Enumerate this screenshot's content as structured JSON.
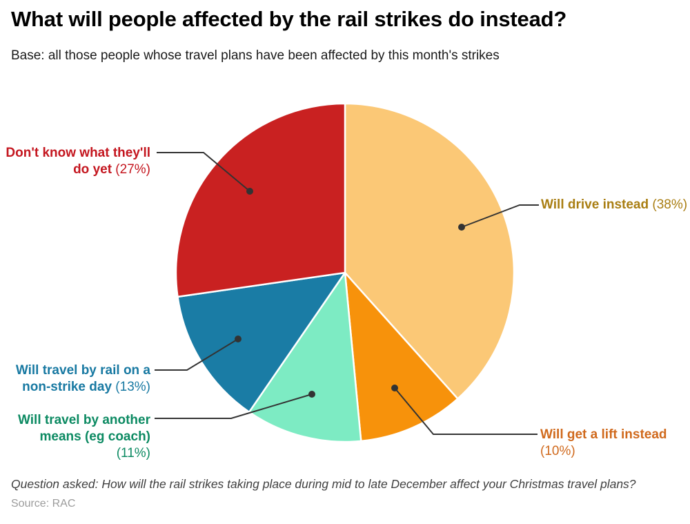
{
  "header": {
    "title": "What will people affected by the rail strikes do instead?",
    "subtitle": "Base: all those people whose travel plans have been affected by this month's strikes"
  },
  "footer": {
    "question": "Question asked: How will the rail strikes taking place during mid to late December affect your Christmas travel plans?",
    "source": "Source: RAC"
  },
  "chart_data": {
    "type": "pie",
    "title": "What will people affected by the rail strikes do instead?",
    "start_angle_deg": 0,
    "direction": "clockwise",
    "leader_line_color": "#333333",
    "slice_stroke_color": "#ffffff",
    "slices": [
      {
        "name": "Will drive instead",
        "value": 38,
        "pct_label": "(38%)",
        "color": "#FBC876",
        "label_color": "#A97E12",
        "label_lines": [
          [
            [
              "Will drive instead",
              true
            ],
            [
              " (38%)",
              false
            ]
          ]
        ]
      },
      {
        "name": "Will get a lift instead",
        "value": 10,
        "pct_label": "(10%)",
        "color": "#F7920B",
        "label_color": "#D0691C",
        "label_lines": [
          [
            [
              "Will get a lift instead",
              true
            ]
          ],
          [
            [
              "(10%)",
              false
            ]
          ]
        ]
      },
      {
        "name": "Will travel by another means (eg coach)",
        "value": 11,
        "pct_label": "(11%)",
        "color": "#7DEBC3",
        "label_color": "#0C8A62",
        "label_lines": [
          [
            [
              "Will travel by another",
              true
            ]
          ],
          [
            [
              "means (eg coach)",
              true
            ]
          ],
          [
            [
              "(11%)",
              false
            ]
          ]
        ]
      },
      {
        "name": "Will travel by rail on a non-strike day",
        "value": 13,
        "pct_label": "(13%)",
        "color": "#1A7CA5",
        "label_color": "#1879A2",
        "label_lines": [
          [
            [
              "Will travel by rail on a",
              true
            ]
          ],
          [
            [
              "non-strike day",
              true
            ],
            [
              " (13%)",
              false
            ]
          ]
        ]
      },
      {
        "name": "Don't know what they'll do yet",
        "value": 27,
        "pct_label": "(27%)",
        "color": "#C92121",
        "label_color": "#C4161F",
        "label_lines": [
          [
            [
              "Don't know what they'll",
              true
            ]
          ],
          [
            [
              "do yet",
              true
            ],
            [
              " (27%)",
              false
            ]
          ]
        ]
      }
    ]
  }
}
